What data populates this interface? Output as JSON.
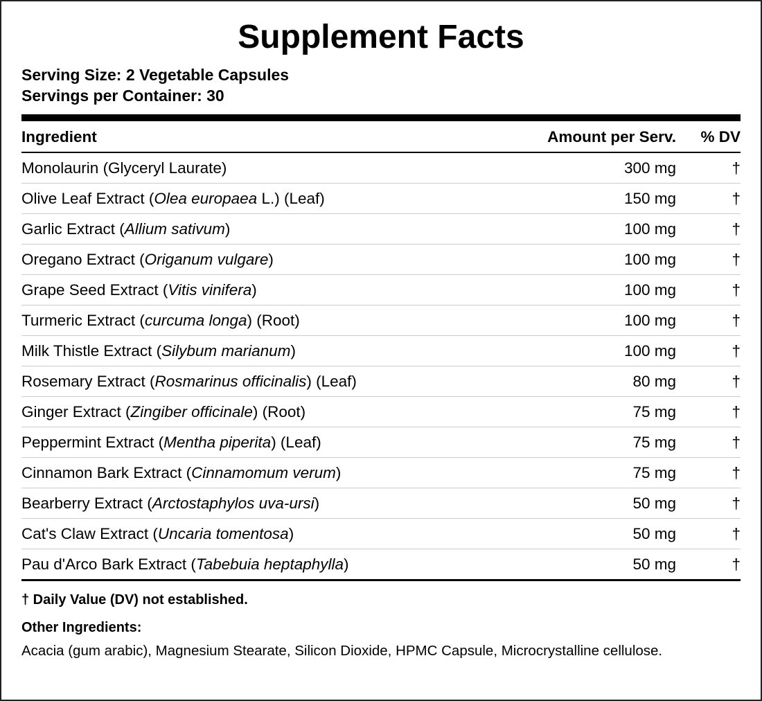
{
  "title": "Supplement Facts",
  "serving_size": "Serving Size: 2 Vegetable Capsules",
  "servings_per_container": "Servings per Container: 30",
  "table": {
    "headers": [
      "Ingredient",
      "Amount per Serv.",
      "% DV"
    ],
    "rows": [
      {
        "name": [
          {
            "text": "Monolaurin (Glyceryl Laurate)",
            "italic": false
          }
        ],
        "amount": "300 mg",
        "dv": "†"
      },
      {
        "name": [
          {
            "text": "Olive Leaf Extract (",
            "italic": false
          },
          {
            "text": "Olea europaea",
            "italic": true
          },
          {
            "text": " L.) (Leaf)",
            "italic": false
          }
        ],
        "amount": "150 mg",
        "dv": "†"
      },
      {
        "name": [
          {
            "text": "Garlic Extract (",
            "italic": false
          },
          {
            "text": "Allium sativum",
            "italic": true
          },
          {
            "text": ")",
            "italic": false
          }
        ],
        "amount": "100 mg",
        "dv": "†"
      },
      {
        "name": [
          {
            "text": "Oregano Extract (",
            "italic": false
          },
          {
            "text": "Origanum vulgare",
            "italic": true
          },
          {
            "text": ")",
            "italic": false
          }
        ],
        "amount": "100 mg",
        "dv": "†"
      },
      {
        "name": [
          {
            "text": "Grape Seed Extract (",
            "italic": false
          },
          {
            "text": "Vitis vinifera",
            "italic": true
          },
          {
            "text": ")",
            "italic": false
          }
        ],
        "amount": "100 mg",
        "dv": "†"
      },
      {
        "name": [
          {
            "text": "Turmeric Extract (",
            "italic": false
          },
          {
            "text": "curcuma longa",
            "italic": true
          },
          {
            "text": ") (Root)",
            "italic": false
          }
        ],
        "amount": "100 mg",
        "dv": "†"
      },
      {
        "name": [
          {
            "text": "Milk Thistle Extract (",
            "italic": false
          },
          {
            "text": "Silybum marianum",
            "italic": true
          },
          {
            "text": ")",
            "italic": false
          }
        ],
        "amount": "100 mg",
        "dv": "†"
      },
      {
        "name": [
          {
            "text": "Rosemary Extract (",
            "italic": false
          },
          {
            "text": "Rosmarinus officinalis",
            "italic": true
          },
          {
            "text": ") (Leaf)",
            "italic": false
          }
        ],
        "amount": "80 mg",
        "dv": "†"
      },
      {
        "name": [
          {
            "text": "Ginger Extract (",
            "italic": false
          },
          {
            "text": "Zingiber officinale",
            "italic": true
          },
          {
            "text": ") (Root)",
            "italic": false
          }
        ],
        "amount": "75 mg",
        "dv": "†"
      },
      {
        "name": [
          {
            "text": "Peppermint Extract (",
            "italic": false
          },
          {
            "text": "Mentha piperita",
            "italic": true
          },
          {
            "text": ") (Leaf)",
            "italic": false
          }
        ],
        "amount": "75 mg",
        "dv": "†"
      },
      {
        "name": [
          {
            "text": "Cinnamon Bark Extract (",
            "italic": false
          },
          {
            "text": "Cinnamomum verum",
            "italic": true
          },
          {
            "text": ")",
            "italic": false
          }
        ],
        "amount": "75 mg",
        "dv": "†"
      },
      {
        "name": [
          {
            "text": "Bearberry Extract (",
            "italic": false
          },
          {
            "text": "Arctostaphylos uva-ursi",
            "italic": true
          },
          {
            "text": ")",
            "italic": false
          }
        ],
        "amount": "50 mg",
        "dv": "†"
      },
      {
        "name": [
          {
            "text": "Cat's Claw Extract (",
            "italic": false
          },
          {
            "text": "Uncaria tomentosa",
            "italic": true
          },
          {
            "text": ")",
            "italic": false
          }
        ],
        "amount": "50 mg",
        "dv": "†"
      },
      {
        "name": [
          {
            "text": "Pau d'Arco Bark Extract (",
            "italic": false
          },
          {
            "text": "Tabebuia heptaphylla",
            "italic": true
          },
          {
            "text": ")",
            "italic": false
          }
        ],
        "amount": "50 mg",
        "dv": "†"
      }
    ]
  },
  "footnote": "† Daily Value (DV) not established.",
  "other_ingredients": {
    "heading": "Other Ingredients:",
    "text": "Acacia (gum arabic), Magnesium Stearate, Silicon Dioxide, HPMC Capsule, Microcrystalline cellulose."
  }
}
